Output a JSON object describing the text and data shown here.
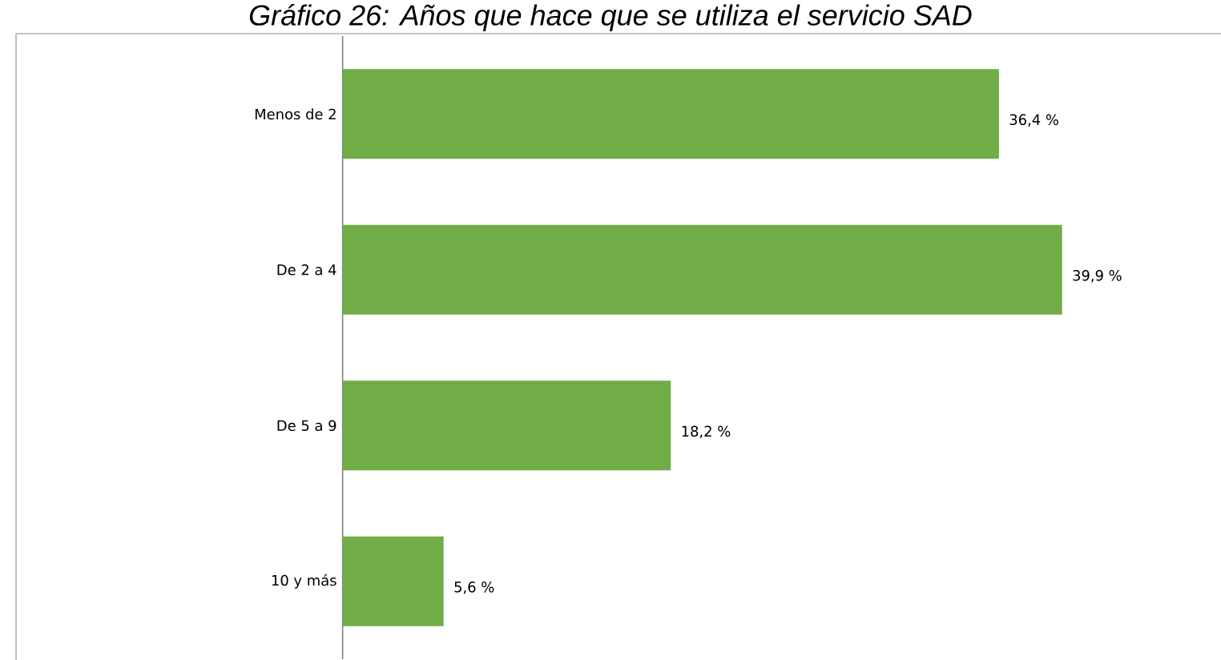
{
  "chart_data": {
    "type": "bar",
    "orientation": "horizontal",
    "title": "Gráfico 26: Años que hace que se utiliza el servicio SAD",
    "categories": [
      "Menos de 2",
      "De 2 a 4",
      "De 5 a 9",
      "10 y más"
    ],
    "values": [
      36.4,
      39.9,
      18.2,
      5.6
    ],
    "value_labels": [
      "36,4 %",
      "39,9 %",
      "18,2 %",
      "5,6 %"
    ],
    "color": "#70ad47"
  }
}
